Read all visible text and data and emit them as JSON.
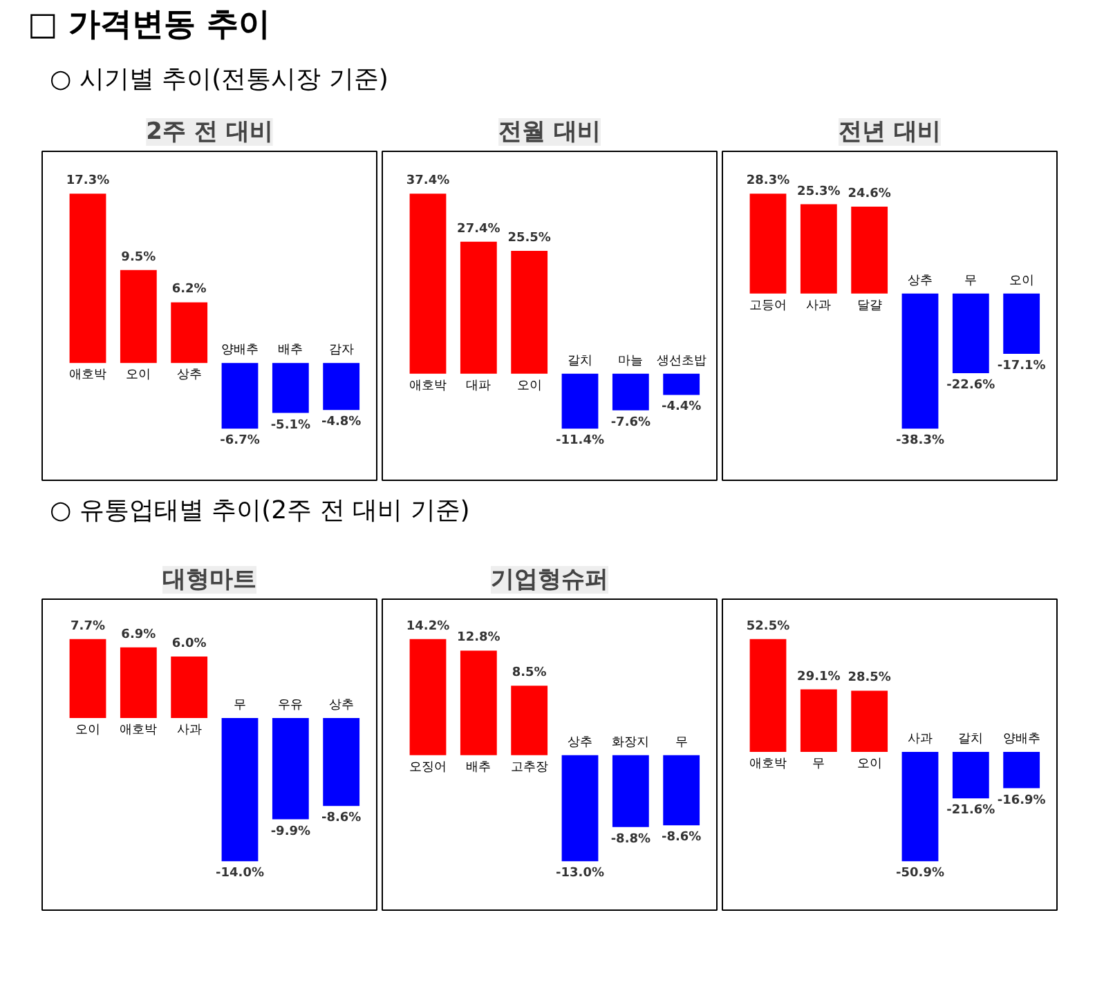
{
  "chart_data": [
    {
      "type": "bar",
      "title": "2주 전 대비",
      "annotations": [
        "□ 가격변동 추이",
        "○ 시기별 추이(전통시장 기준)"
      ],
      "categories": [
        "애호박",
        "오이",
        "상추",
        "양배추",
        "배추",
        "감자"
      ],
      "values": [
        17.3,
        9.5,
        6.2,
        -6.7,
        -5.1,
        -4.8
      ],
      "value_labels": [
        "17.3%",
        "9.5%",
        "6.2%",
        "-6.7%",
        "-5.1%",
        "-4.8%"
      ],
      "colors": [
        "#ff0000",
        "#ff0000",
        "#ff0000",
        "#0000ff",
        "#0000ff",
        "#0000ff"
      ]
    },
    {
      "type": "bar",
      "title": "전월 대비",
      "categories": [
        "애호박",
        "대파",
        "오이",
        "갈치",
        "마늘",
        "생선초밥"
      ],
      "values": [
        37.4,
        27.4,
        25.5,
        -11.4,
        -7.6,
        -4.4
      ],
      "value_labels": [
        "37.4%",
        "27.4%",
        "25.5%",
        "-11.4%",
        "-7.6%",
        "-4.4%"
      ],
      "colors": [
        "#ff0000",
        "#ff0000",
        "#ff0000",
        "#0000ff",
        "#0000ff",
        "#0000ff"
      ]
    },
    {
      "type": "bar",
      "title": "전년 대비",
      "categories": [
        "고등어",
        "사과",
        "달걀",
        "상추",
        "무",
        "오이"
      ],
      "values": [
        28.3,
        25.3,
        24.6,
        -38.3,
        -22.6,
        -17.1
      ],
      "value_labels": [
        "28.3%",
        "25.3%",
        "24.6%",
        "-38.3%",
        "-22.6%",
        "-17.1%"
      ],
      "colors": [
        "#ff0000",
        "#ff0000",
        "#ff0000",
        "#0000ff",
        "#0000ff",
        "#0000ff"
      ]
    },
    {
      "type": "bar",
      "title": "대형마트",
      "annotations": [
        "○ 유통업태별 추이(2주 전 대비 기준)"
      ],
      "categories": [
        "오이",
        "애호박",
        "사과",
        "무",
        "우유",
        "상추"
      ],
      "values": [
        7.7,
        6.9,
        6.0,
        -14.0,
        -9.9,
        -8.6
      ],
      "value_labels": [
        "7.7%",
        "6.9%",
        "6.0%",
        "-14.0%",
        "-9.9%",
        "-8.6%"
      ],
      "colors": [
        "#ff0000",
        "#ff0000",
        "#ff0000",
        "#0000ff",
        "#0000ff",
        "#0000ff"
      ]
    },
    {
      "type": "bar",
      "title": "기업형슈퍼",
      "categories": [
        "오징어",
        "배추",
        "고추장",
        "상추",
        "화장지",
        "무"
      ],
      "values": [
        14.2,
        12.8,
        8.5,
        -13.0,
        -8.8,
        -8.6
      ],
      "value_labels": [
        "14.2%",
        "12.8%",
        "8.5%",
        "-13.0%",
        "-8.8%",
        "-8.6%"
      ],
      "colors": [
        "#ff0000",
        "#ff0000",
        "#ff0000",
        "#0000ff",
        "#0000ff",
        "#0000ff"
      ]
    },
    {
      "type": "bar",
      "categories": [
        "애호박",
        "무",
        "오이",
        "사과",
        "갈치",
        "양배추"
      ],
      "values": [
        52.5,
        29.1,
        28.5,
        -50.9,
        -21.6,
        -16.9
      ],
      "value_labels": [
        "52.5%",
        "29.1%",
        "28.5%",
        "-50.9%",
        "-21.6%",
        "-16.9%"
      ],
      "colors": [
        "#ff0000",
        "#ff0000",
        "#ff0000",
        "#0000ff",
        "#0000ff",
        "#0000ff"
      ]
    }
  ]
}
